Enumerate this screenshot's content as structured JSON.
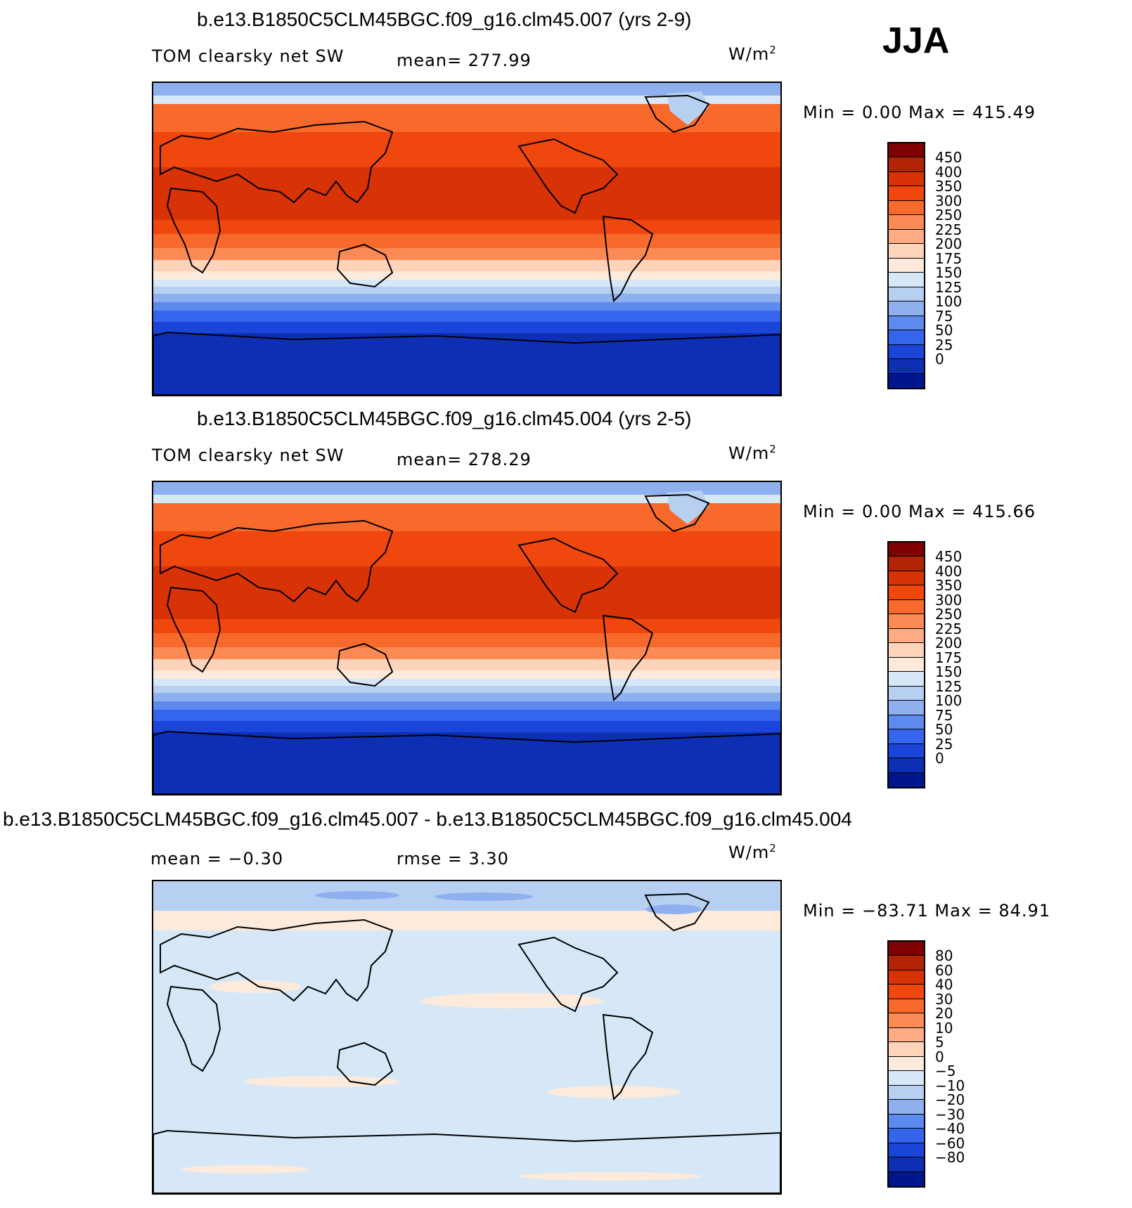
{
  "season": "JJA",
  "units_base": "W/m",
  "units_exp": "2",
  "panels": [
    {
      "title": "b.e13.B1850C5CLM45BGC.f09_g16.clm45.007 (yrs 2-9)",
      "variable": "TOM clearsky net SW",
      "stat1": "mean=  277.99",
      "stat2": "",
      "minmax": "Min =     0.00  Max  =  415.49",
      "colorbar_labels": [
        "450",
        "400",
        "350",
        "300",
        "250",
        "225",
        "200",
        "175",
        "150",
        "125",
        "100",
        "75",
        "50",
        "25",
        "0"
      ],
      "colorbar_colors": [
        "#7f0000",
        "#b22504",
        "#d83306",
        "#f0470f",
        "#f86a2b",
        "#fc8a55",
        "#fdab82",
        "#fdd3b9",
        "#fdeadb",
        "#d6e8f8",
        "#b7d0f2",
        "#8fb0ee",
        "#5d8aee",
        "#3465ec",
        "#1a45d8",
        "#0d2fb4",
        "#00168c"
      ],
      "map_type": "model"
    },
    {
      "title": "b.e13.B1850C5CLM45BGC.f09_g16.clm45.004 (yrs 2-5)",
      "variable": "TOM clearsky net SW",
      "stat1": "mean=  278.29",
      "stat2": "",
      "minmax": "Min =     0.00  Max  =  415.66",
      "colorbar_labels": [
        "450",
        "400",
        "350",
        "300",
        "250",
        "225",
        "200",
        "175",
        "150",
        "125",
        "100",
        "75",
        "50",
        "25",
        "0"
      ],
      "colorbar_colors": [
        "#7f0000",
        "#b22504",
        "#d83306",
        "#f0470f",
        "#f86a2b",
        "#fc8a55",
        "#fdab82",
        "#fdd3b9",
        "#fdeadb",
        "#d6e8f8",
        "#b7d0f2",
        "#8fb0ee",
        "#5d8aee",
        "#3465ec",
        "#1a45d8",
        "#0d2fb4",
        "#00168c"
      ],
      "map_type": "model"
    },
    {
      "title": "b.e13.B1850C5CLM45BGC.f09_g16.clm45.007 - b.e13.B1850C5CLM45BGC.f09_g16.clm45.004",
      "variable": "",
      "stat1": "mean =   −0.30",
      "stat2": "rmse =     3.30",
      "minmax": "Min = −83.71  Max  =   84.91",
      "colorbar_labels": [
        "80",
        "60",
        "40",
        "30",
        "20",
        "10",
        "5",
        "0",
        "−5",
        "−10",
        "−20",
        "−30",
        "−40",
        "−60",
        "−80"
      ],
      "colorbar_colors": [
        "#7f0000",
        "#b22504",
        "#d83306",
        "#f0470f",
        "#f86a2b",
        "#fc8a55",
        "#fdab82",
        "#fdd3b9",
        "#fdeadb",
        "#d6e8f8",
        "#b7d0f2",
        "#8fb0ee",
        "#5d8aee",
        "#3465ec",
        "#1a45d8",
        "#0d2fb4",
        "#00168c"
      ],
      "map_type": "diff"
    }
  ]
}
